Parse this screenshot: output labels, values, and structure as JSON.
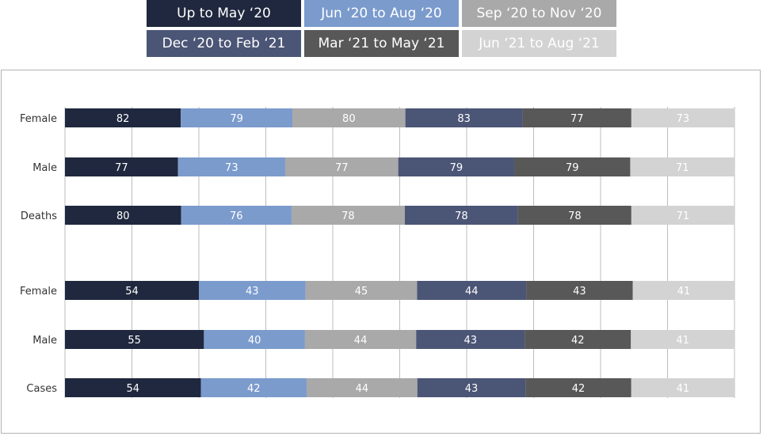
{
  "legend": [
    {
      "label": "Up to May ‘20",
      "color": "#1f283e"
    },
    {
      "label": "Jun ‘20 to Aug ‘20",
      "color": "#7b9bcd"
    },
    {
      "label": "Sep ‘20 to Nov ‘20",
      "color": "#a9a9a9"
    },
    {
      "label": "Dec ‘20 to Feb ‘21",
      "color": "#4b5576"
    },
    {
      "label": "Mar ‘21 to May ‘21",
      "color": "#585858"
    },
    {
      "label": "Jun ‘21 to Aug ‘21",
      "color": "#d3d3d3"
    }
  ],
  "chart_data": {
    "type": "bar",
    "orientation": "horizontal",
    "stacked": true,
    "categories": [
      "Female",
      "Male",
      "Deaths",
      "Female",
      "Male",
      "Cases"
    ],
    "series": [
      {
        "name": "Up to May ‘20",
        "values": [
          82,
          77,
          80,
          54,
          55,
          54
        ]
      },
      {
        "name": "Jun ‘20 to Aug ‘20",
        "values": [
          79,
          73,
          76,
          43,
          40,
          42
        ]
      },
      {
        "name": "Sep ‘20 to Nov ‘20",
        "values": [
          80,
          77,
          78,
          45,
          44,
          44
        ]
      },
      {
        "name": "Dec ‘20 to Feb ‘21",
        "values": [
          83,
          79,
          78,
          44,
          43,
          43
        ]
      },
      {
        "name": "Mar ‘21 to May ‘21",
        "values": [
          77,
          79,
          78,
          43,
          42,
          42
        ]
      },
      {
        "name": "Jun ‘21 to Aug ‘21",
        "values": [
          73,
          71,
          71,
          41,
          41,
          41
        ]
      }
    ],
    "colors": [
      "#1f283e",
      "#7b9bcd",
      "#a9a9a9",
      "#4b5576",
      "#585858",
      "#d3d3d3"
    ],
    "label_colors": [
      "#ffffff",
      "#ffffff",
      "#ffffff",
      "#ffffff",
      "#ffffff",
      "#ffffff"
    ],
    "normalized": true,
    "grid": true,
    "legend_position": "top"
  }
}
